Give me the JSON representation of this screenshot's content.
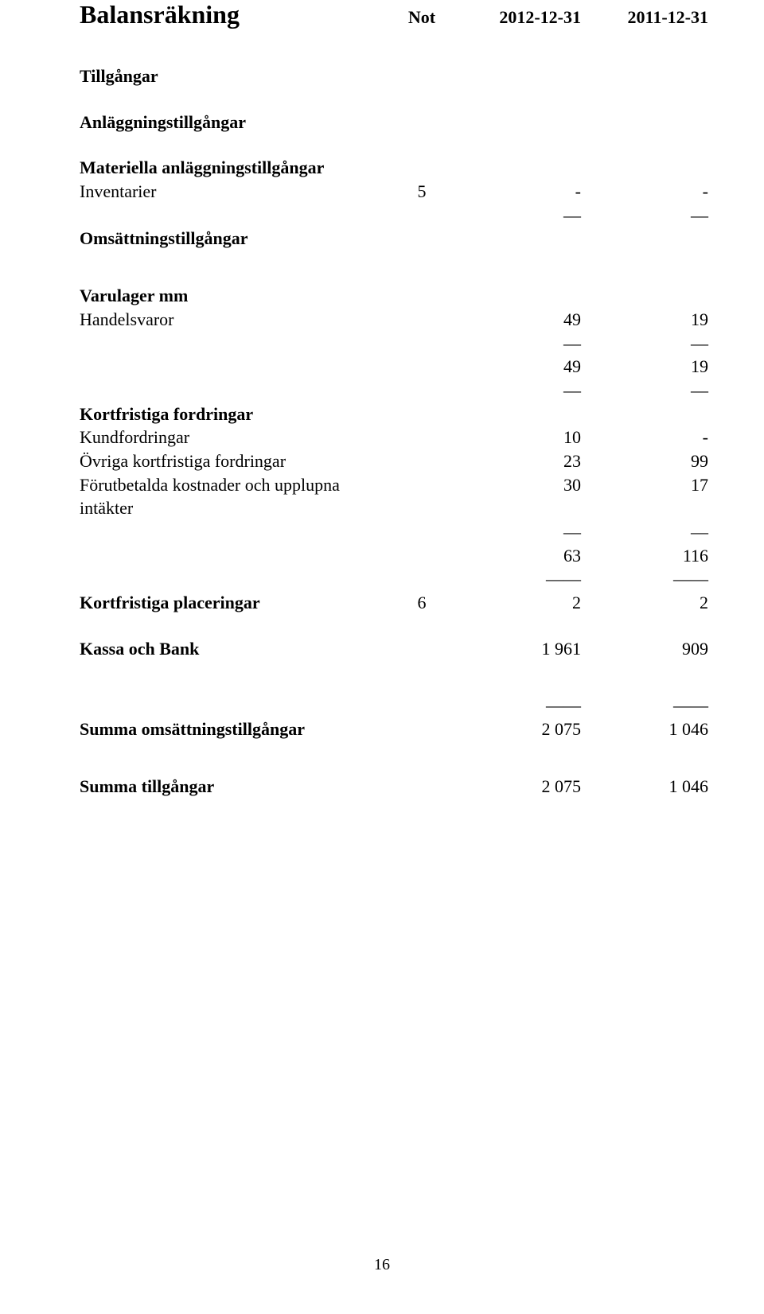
{
  "header": {
    "title": "Balansräkning",
    "col_not": "Not",
    "col_a": "2012-12-31",
    "col_b": "2011-12-31"
  },
  "sections": {
    "tillgangar": "Tillgångar",
    "anlaggning": "Anläggningstillgångar",
    "materiella": "Materiella anläggningstillgångar",
    "inventarier": {
      "label": "Inventarier",
      "not": "5",
      "a": "-",
      "b": "-"
    },
    "mat_rule": {
      "a": "—",
      "b": "—"
    },
    "omsattning": "Omsättningstillgångar",
    "varulager": "Varulager mm",
    "handelsvaror": {
      "label": "Handelsvaror",
      "a": "49",
      "b": "19"
    },
    "var_rule": {
      "a": "—",
      "b": "—"
    },
    "var_sum": {
      "a": "49",
      "b": "19"
    },
    "var_rule2": {
      "a": "—",
      "b": "—"
    },
    "kortfr_fordr": "Kortfristiga fordringar",
    "kundfordr": {
      "label": "Kundfordringar",
      "a": "10",
      "b": "-"
    },
    "ovriga": {
      "label": "Övriga kortfristiga fordringar",
      "a": "23",
      "b": "99"
    },
    "forutbet": {
      "label": "Förutbetalda kostnader och upplupna intäkter",
      "a": "30",
      "b": "17"
    },
    "kf_rule": {
      "a": "—",
      "b": "—"
    },
    "kf_sum": {
      "a": "63",
      "b": "116"
    },
    "kf_rule2": {
      "a": "——",
      "b": "——"
    },
    "kortfr_plac": {
      "label": "Kortfristiga placeringar",
      "not": "6",
      "a": "2",
      "b": "2"
    },
    "kassa": {
      "label": "Kassa och Bank",
      "a": "1 961",
      "b": "909"
    },
    "kassa_rule": {
      "a": "——",
      "b": "——"
    },
    "summa_oms": {
      "label": "Summa omsättningstillgångar",
      "a": "2 075",
      "b": "1 046"
    },
    "summa_till": {
      "label": "Summa tillgångar",
      "a": "2 075",
      "b": "1 046"
    }
  },
  "page_number": "16"
}
